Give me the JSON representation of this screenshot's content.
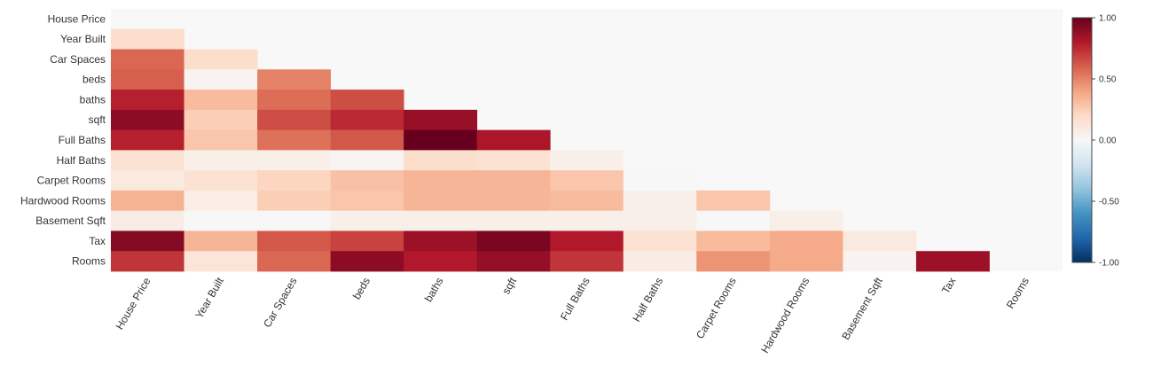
{
  "chart_data": {
    "type": "heatmap",
    "title": "",
    "xlabel": "",
    "ylabel": "",
    "variables": [
      "House Price",
      "Year Built",
      "Car Spaces",
      "beds",
      "baths",
      "sqft",
      "Full Baths",
      "Half Baths",
      "Carpet Rooms",
      "Hardwood Rooms",
      "Basement Sqft",
      "Tax",
      "Rooms"
    ],
    "matrix": [
      [
        null,
        null,
        null,
        null,
        null,
        null,
        null,
        null,
        null,
        null,
        null,
        null,
        null
      ],
      [
        0.18,
        null,
        null,
        null,
        null,
        null,
        null,
        null,
        null,
        null,
        null,
        null,
        null
      ],
      [
        0.58,
        0.18,
        null,
        null,
        null,
        null,
        null,
        null,
        null,
        null,
        null,
        null,
        null
      ],
      [
        0.6,
        0.03,
        0.5,
        null,
        null,
        null,
        null,
        null,
        null,
        null,
        null,
        null,
        null
      ],
      [
        0.78,
        0.32,
        0.56,
        0.65,
        null,
        null,
        null,
        null,
        null,
        null,
        null,
        null,
        null
      ],
      [
        0.9,
        0.25,
        0.65,
        0.75,
        0.87,
        null,
        null,
        null,
        null,
        null,
        null,
        null,
        null
      ],
      [
        0.78,
        0.28,
        0.55,
        0.62,
        1.0,
        0.82,
        null,
        null,
        null,
        null,
        null,
        null,
        null
      ],
      [
        0.15,
        0.06,
        0.06,
        0.02,
        0.18,
        0.15,
        0.06,
        null,
        null,
        null,
        null,
        null,
        null
      ],
      [
        0.1,
        0.15,
        0.22,
        0.3,
        0.34,
        0.34,
        0.28,
        0.0,
        null,
        null,
        null,
        null,
        null
      ],
      [
        0.35,
        0.07,
        0.25,
        0.28,
        0.34,
        0.34,
        0.32,
        0.06,
        0.28,
        null,
        null,
        null,
        null
      ],
      [
        0.08,
        0.0,
        0.0,
        0.06,
        0.06,
        0.06,
        0.06,
        0.06,
        0.0,
        0.06,
        null,
        null,
        null
      ],
      [
        0.92,
        0.34,
        0.62,
        0.68,
        0.86,
        0.95,
        0.8,
        0.15,
        0.32,
        0.38,
        0.1,
        null,
        null
      ],
      [
        0.72,
        0.13,
        0.58,
        0.9,
        0.8,
        0.88,
        0.72,
        0.08,
        0.45,
        0.38,
        0.03,
        0.86,
        null
      ]
    ],
    "colorbar": {
      "range": [
        -1.0,
        1.0
      ],
      "tick_labels": [
        "1.00",
        "0.50",
        "0.00",
        "-0.50",
        "-1.00"
      ],
      "colorscale": [
        "#053061",
        "#2166ac",
        "#4393c3",
        "#92c5de",
        "#d1e5f0",
        "#f7f7f7",
        "#fddbc7",
        "#f4a582",
        "#d6604d",
        "#b2182b",
        "#67001f"
      ]
    },
    "plot_background": "#f8f8f8"
  }
}
